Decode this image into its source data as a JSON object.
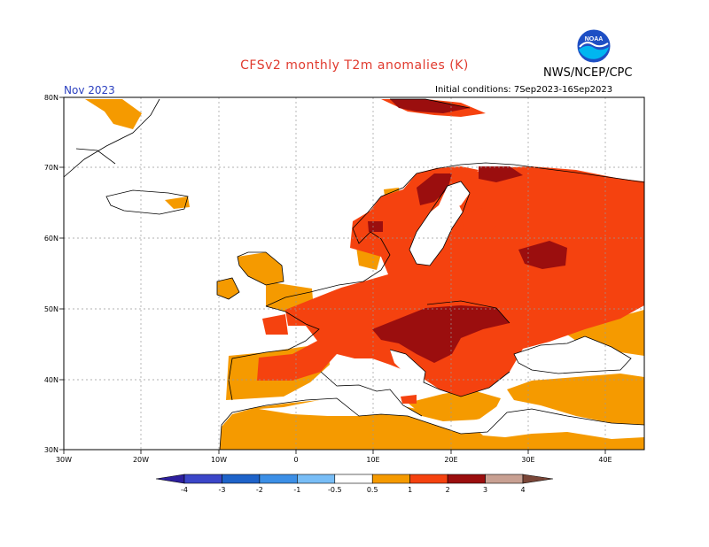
{
  "title": "CFSv2 monthly T2m anomalies (K)",
  "agency": "NWS/NCEP/CPC",
  "logo_text": "NOAA",
  "month": "Nov 2023",
  "initial_conditions": "Initial conditions: 7Sep2023-16Sep2023",
  "map": {
    "lon_range": [
      -30,
      45
    ],
    "lat_range": [
      30,
      80
    ],
    "lon_labels": [
      "30W",
      "20W",
      "10W",
      "0",
      "10E",
      "20E",
      "30E",
      "40E"
    ],
    "lat_labels": [
      "30N",
      "40N",
      "50N",
      "60N",
      "70N",
      "80N"
    ],
    "gridlines": true
  },
  "colorbar": {
    "labels": [
      "-4",
      "-3",
      "-2",
      "-1",
      "-0.5",
      "0.5",
      "1",
      "2",
      "3",
      "4"
    ],
    "colors": [
      "#2d1f9e",
      "#3b46c8",
      "#1e63c9",
      "#3c8fe6",
      "#78bdf6",
      "#ffffff",
      "#f59a00",
      "#f5420f",
      "#9b0e0e",
      "#c8a092",
      "#7a4638"
    ]
  }
}
